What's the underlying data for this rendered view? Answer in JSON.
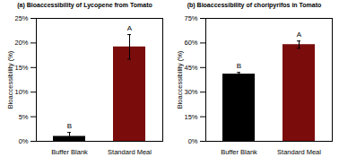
{
  "chart_data": [
    {
      "type": "bar",
      "title": "(a) Bioaccessibility of Lycopene from Tomato",
      "y_label": "Bioaccessibility (%)",
      "categories": [
        "Buffer Blank",
        "Standard Meal"
      ],
      "values": [
        1,
        19.2
      ],
      "errors": [
        0.8,
        2.5
      ],
      "annotations": [
        "B",
        "A"
      ],
      "colors": [
        "#000000",
        "#7b0c0c"
      ],
      "ylim": [
        0,
        25
      ],
      "yticks": [
        {
          "value": 0,
          "label": "0%"
        },
        {
          "value": 5,
          "label": "5%"
        },
        {
          "value": 10,
          "label": "10%"
        },
        {
          "value": 15,
          "label": "15%"
        },
        {
          "value": 20,
          "label": "20%"
        },
        {
          "value": 25,
          "label": "25%"
        }
      ]
    },
    {
      "type": "bar",
      "title": "(b) Bioaccessibility of choripyrifos in Tomato",
      "y_label": "Bioaccessibility (%)",
      "categories": [
        "Buffer Blank",
        "Standard Meal"
      ],
      "values": [
        41,
        59
      ],
      "errors": [
        1,
        2.2
      ],
      "annotations": [
        "B",
        "A"
      ],
      "colors": [
        "#000000",
        "#7b0c0c"
      ],
      "ylim": [
        0,
        75
      ],
      "yticks": [
        {
          "value": 0,
          "label": "0%"
        },
        {
          "value": 15,
          "label": "15%"
        },
        {
          "value": 30,
          "label": "30%"
        },
        {
          "value": 45,
          "label": "45%"
        },
        {
          "value": 60,
          "label": "60%"
        },
        {
          "value": 75,
          "label": "75%"
        }
      ]
    }
  ]
}
